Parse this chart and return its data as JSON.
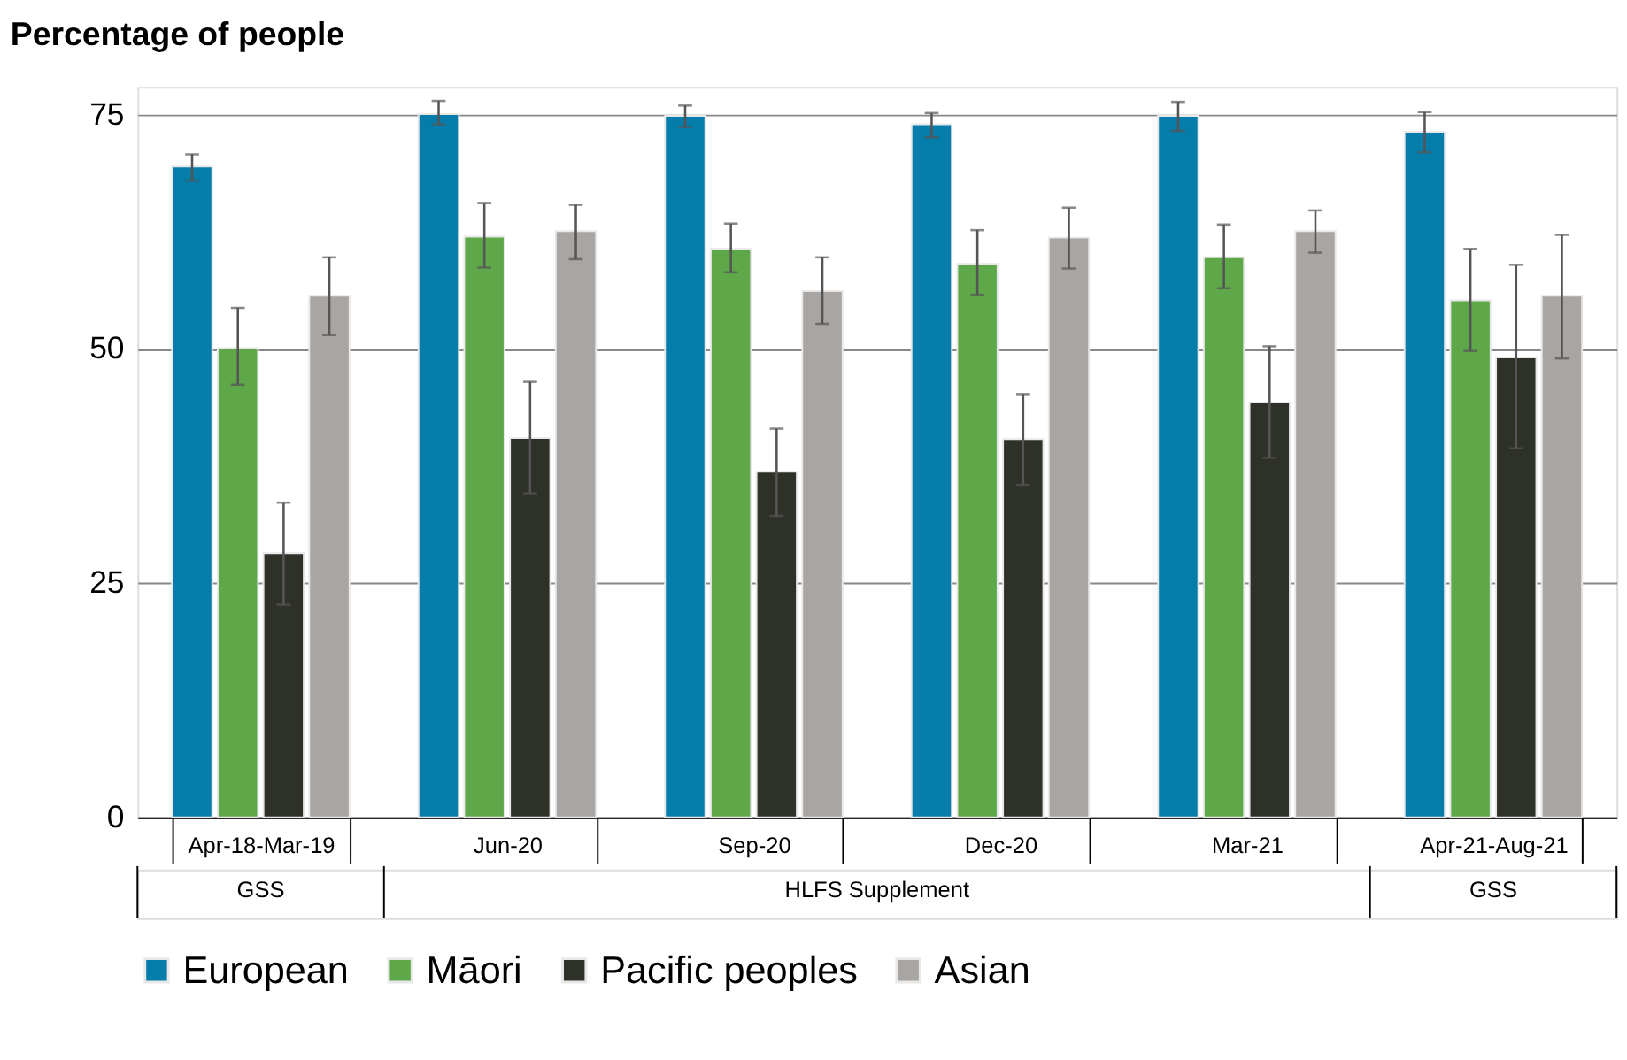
{
  "chart_data": {
    "type": "bar",
    "ylabel": "Percentage of people",
    "categories": [
      "Apr-18-Mar-19",
      "Jun-20",
      "Sep-20",
      "Dec-20",
      "Mar-21",
      "Apr-21-Aug-21"
    ],
    "series": [
      {
        "name": "European",
        "color": "#047dab",
        "values": [
          69.5,
          75.1,
          74.9,
          74.0,
          74.9,
          73.2
        ],
        "errors": [
          [
            68.0,
            70.8
          ],
          [
            74.0,
            76.5
          ],
          [
            73.7,
            76.0
          ],
          [
            72.6,
            75.2
          ],
          [
            73.3,
            76.4
          ],
          [
            71.0,
            75.3
          ]
        ]
      },
      {
        "name": "Māori",
        "color": "#5ea84a",
        "values": [
          50.1,
          62.0,
          60.7,
          59.1,
          59.8,
          55.2
        ],
        "errors": [
          [
            46.2,
            54.4
          ],
          [
            58.7,
            65.6
          ],
          [
            58.2,
            63.4
          ],
          [
            55.8,
            62.7
          ],
          [
            56.5,
            63.3
          ],
          [
            49.8,
            60.7
          ]
        ]
      },
      {
        "name": "Pacific peoples",
        "color": "#2e3128",
        "values": [
          28.2,
          40.5,
          36.9,
          40.4,
          44.3,
          49.1
        ],
        "errors": [
          [
            22.7,
            33.6
          ],
          [
            34.6,
            46.5
          ],
          [
            32.2,
            41.5
          ],
          [
            35.5,
            45.2
          ],
          [
            38.4,
            50.3
          ],
          [
            39.4,
            59.0
          ]
        ]
      },
      {
        "name": "Asian",
        "color": "#a8a5a2",
        "values": [
          55.7,
          62.6,
          56.2,
          61.9,
          62.6,
          55.7
        ],
        "errors": [
          [
            51.5,
            59.8
          ],
          [
            59.6,
            65.4
          ],
          [
            52.7,
            59.8
          ],
          [
            58.6,
            65.1
          ],
          [
            60.3,
            64.8
          ],
          [
            49.0,
            62.2
          ]
        ]
      }
    ],
    "annotations": [
      "GSS",
      "HLFS Supplement",
      "GSS"
    ],
    "ylim": [
      0,
      78
    ],
    "yticks": [
      0,
      25,
      50,
      75
    ],
    "grid": "y",
    "legend": "bottom"
  }
}
